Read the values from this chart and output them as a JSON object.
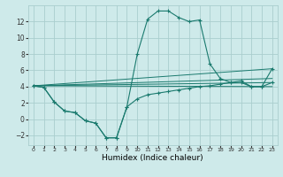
{
  "xlabel": "Humidex (Indice chaleur)",
  "xlim": [
    -0.5,
    23.5
  ],
  "ylim": [
    -3.2,
    14.0
  ],
  "xticks": [
    0,
    1,
    2,
    3,
    4,
    5,
    6,
    7,
    8,
    9,
    10,
    11,
    12,
    13,
    14,
    15,
    16,
    17,
    18,
    19,
    20,
    21,
    22,
    23
  ],
  "yticks": [
    -2,
    0,
    2,
    4,
    6,
    8,
    10,
    12
  ],
  "bg_color": "#ceeaea",
  "grid_color": "#aacece",
  "line_color": "#1a7a6e",
  "lines": [
    {
      "x": [
        0,
        1,
        2,
        3,
        4,
        5,
        6,
        7,
        8,
        9,
        10,
        11,
        12,
        13,
        14,
        15,
        16,
        17,
        18,
        19,
        20,
        21,
        22,
        23
      ],
      "y": [
        4.1,
        3.9,
        2.1,
        1.0,
        0.8,
        -0.2,
        -0.5,
        -2.3,
        -2.3,
        1.5,
        8.0,
        12.3,
        13.3,
        13.3,
        12.5,
        12.0,
        12.2,
        6.8,
        5.0,
        4.5,
        4.5,
        4.0,
        4.0,
        6.2
      ],
      "marker": true
    },
    {
      "x": [
        0,
        1,
        2,
        3,
        4,
        5,
        6,
        7,
        8,
        9,
        10,
        11,
        12,
        13,
        14,
        15,
        16,
        17,
        18,
        19,
        20,
        21,
        22,
        23
      ],
      "y": [
        4.1,
        3.9,
        2.1,
        1.0,
        0.8,
        -0.2,
        -0.5,
        -2.3,
        -2.3,
        1.5,
        2.5,
        3.0,
        3.2,
        3.4,
        3.6,
        3.8,
        4.0,
        4.1,
        4.3,
        4.5,
        4.7,
        4.0,
        4.0,
        4.5
      ],
      "marker": true
    },
    {
      "x": [
        0,
        23
      ],
      "y": [
        4.1,
        6.2
      ],
      "marker": false
    },
    {
      "x": [
        0,
        23
      ],
      "y": [
        4.1,
        5.0
      ],
      "marker": false
    },
    {
      "x": [
        0,
        23
      ],
      "y": [
        4.1,
        4.5
      ],
      "marker": false
    },
    {
      "x": [
        0,
        23
      ],
      "y": [
        4.1,
        4.0
      ],
      "marker": false
    }
  ]
}
